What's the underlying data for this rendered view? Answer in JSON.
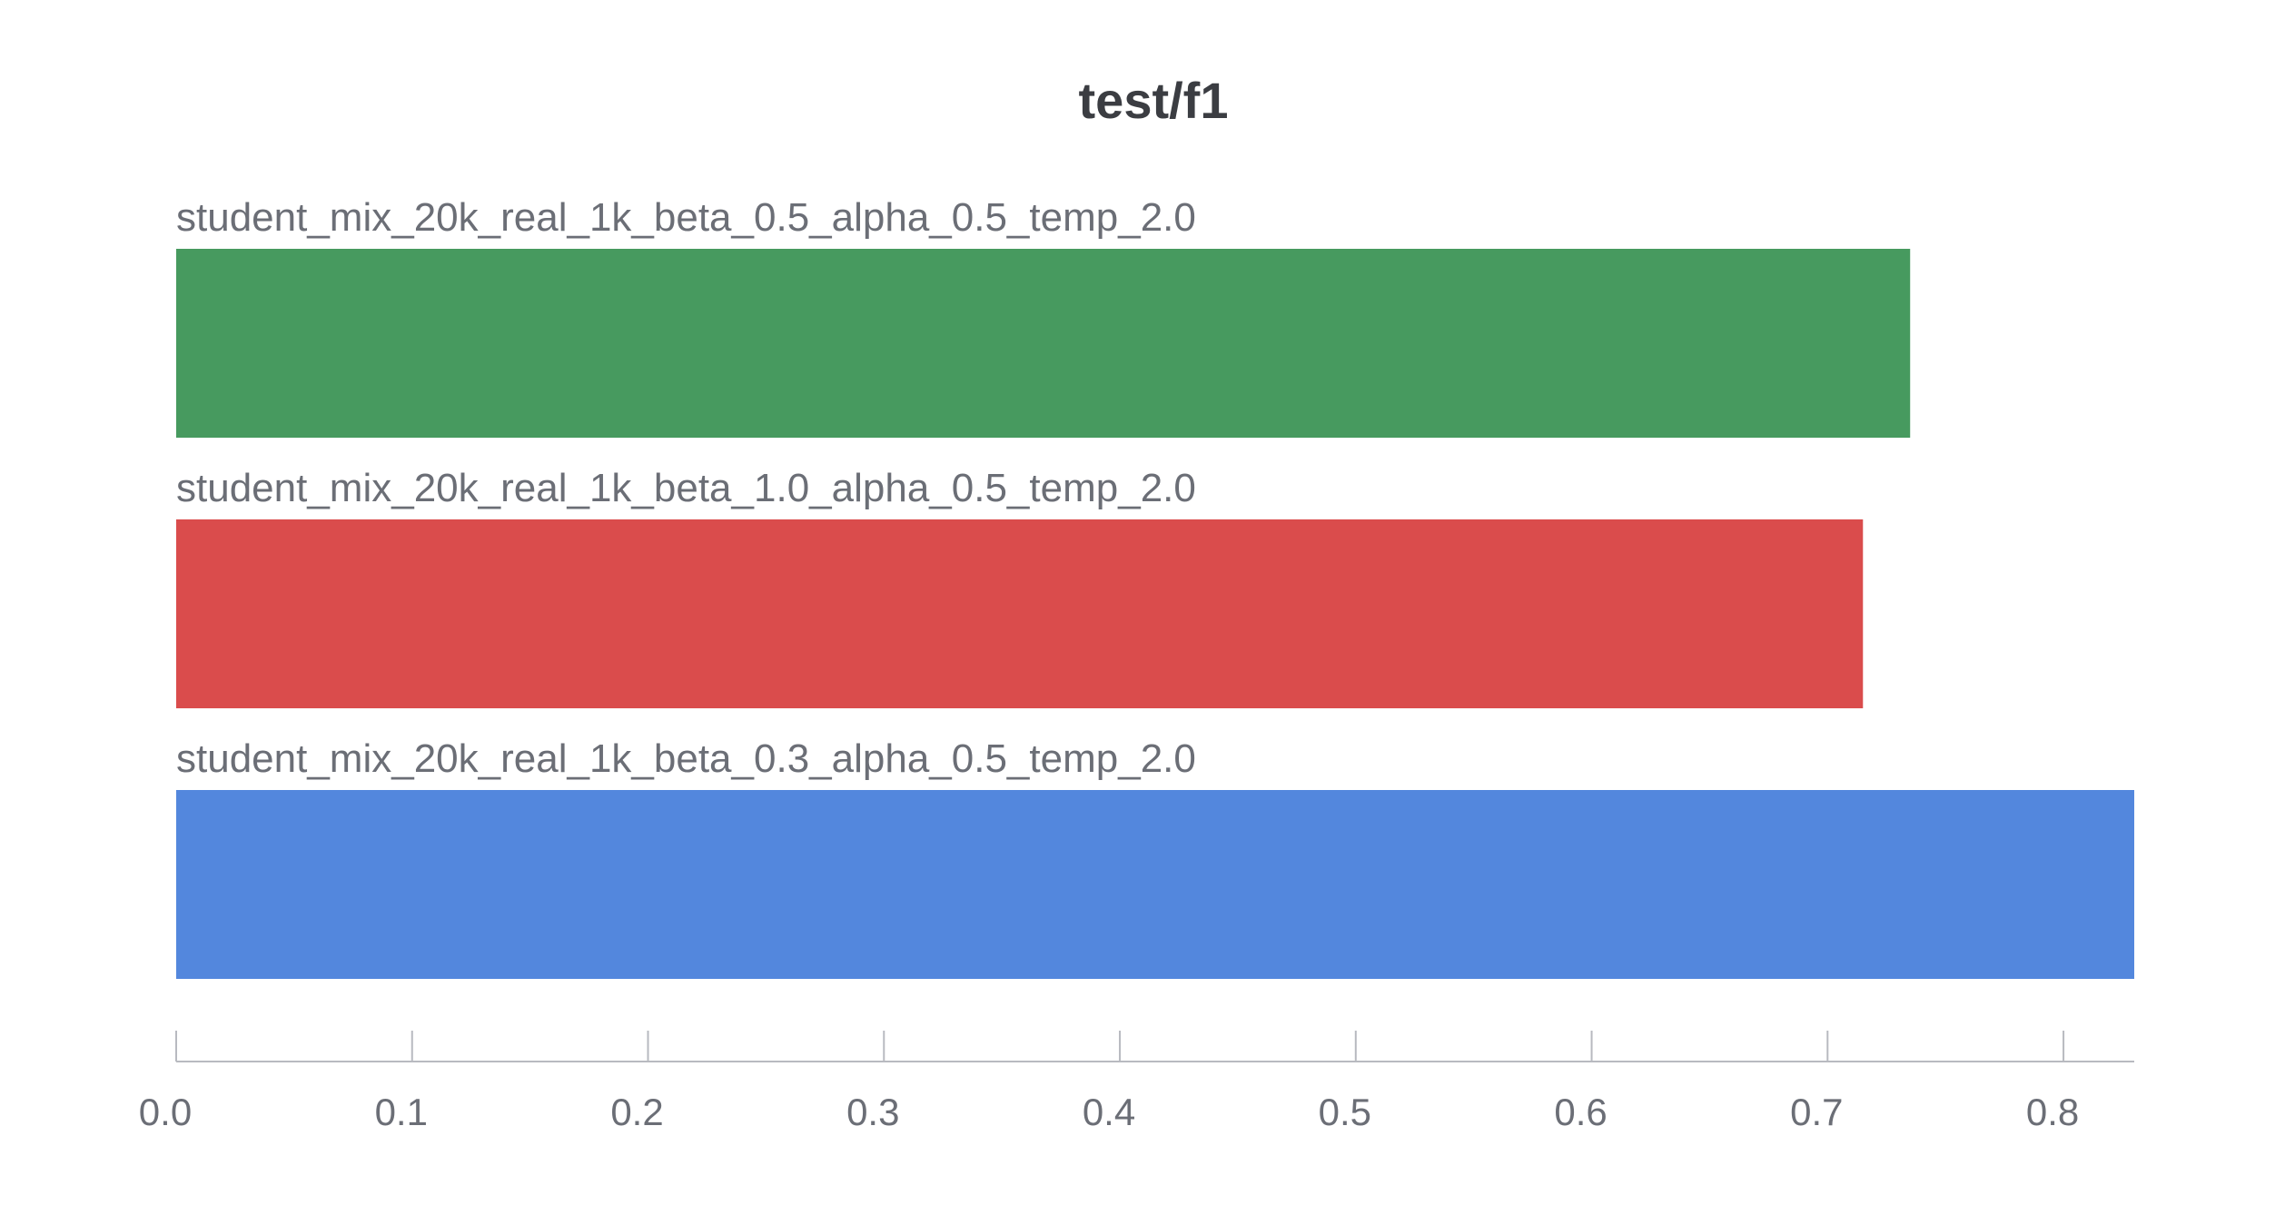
{
  "chart_data": {
    "type": "bar",
    "orientation": "horizontal",
    "title": "test/f1",
    "xlabel": "",
    "ylabel": "",
    "xlim": [
      0,
      0.83
    ],
    "grid": false,
    "legend": "none",
    "bars": [
      {
        "label": "student_mix_20k_real_1k_beta_0.5_alpha_0.5_temp_2.0",
        "value": 0.735,
        "color": "#479a5f"
      },
      {
        "label": "student_mix_20k_real_1k_beta_1.0_alpha_0.5_temp_2.0",
        "value": 0.715,
        "color": "#da4c4c"
      },
      {
        "label": "student_mix_20k_real_1k_beta_0.3_alpha_0.5_temp_2.0",
        "value": 0.83,
        "color": "#5387dd"
      }
    ],
    "x_ticks": [
      {
        "value": 0.0,
        "label": "0.0"
      },
      {
        "value": 0.1,
        "label": "0.1"
      },
      {
        "value": 0.2,
        "label": "0.2"
      },
      {
        "value": 0.3,
        "label": "0.3"
      },
      {
        "value": 0.4,
        "label": "0.4"
      },
      {
        "value": 0.5,
        "label": "0.5"
      },
      {
        "value": 0.6,
        "label": "0.6"
      },
      {
        "value": 0.7,
        "label": "0.7"
      },
      {
        "value": 0.8,
        "label": "0.8"
      }
    ]
  }
}
